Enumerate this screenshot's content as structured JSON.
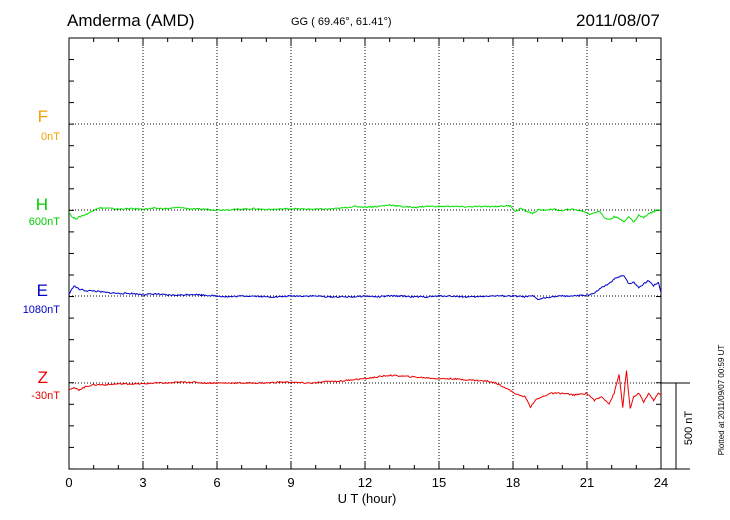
{
  "header": {
    "station": "Amderma (AMD)",
    "coords": "GG ( 69.46°,  61.41°)",
    "date": "2011/08/07"
  },
  "side_note": "Plotted at 2011/09/07 00:59 UT",
  "scale_label": "500 nT",
  "chart_data": {
    "type": "line",
    "xlabel": "U T (hour)",
    "xlim": [
      0,
      24
    ],
    "xticks": [
      "0",
      "3",
      "6",
      "9",
      "12",
      "15",
      "18",
      "21",
      "24"
    ],
    "grid": true,
    "scale_bar_nT": 500,
    "series": [
      {
        "name": "F",
        "baseline_label": "0nT",
        "color": "#f0a000",
        "x": [],
        "y": []
      },
      {
        "name": "H",
        "baseline_label": "600nT",
        "color": "#00e000",
        "x": [
          0,
          0.15,
          0.3,
          0.5,
          0.7,
          0.9,
          1.1,
          1.3,
          1.6,
          2,
          2.5,
          3,
          3.5,
          4,
          4.5,
          5,
          5.5,
          6,
          6.5,
          7,
          7.5,
          8,
          8.5,
          9,
          9.5,
          10,
          10.5,
          11,
          11.5,
          12,
          12.5,
          13,
          13.5,
          14,
          14.5,
          15,
          15.5,
          16,
          16.5,
          17,
          17.5,
          17.9,
          18.1,
          18.3,
          18.5,
          18.8,
          19,
          19.3,
          19.6,
          20,
          20.3,
          20.6,
          20.9,
          21.1,
          21.3,
          21.5,
          21.7,
          21.9,
          22.1,
          22.3,
          22.5,
          22.7,
          22.9,
          23.1,
          23.3,
          23.5,
          23.7,
          23.9,
          24
        ],
        "y": [
          -10,
          -45,
          -50,
          -35,
          -25,
          -10,
          8,
          12,
          10,
          5,
          8,
          5,
          10,
          8,
          15,
          5,
          5,
          0,
          2,
          5,
          8,
          3,
          5,
          8,
          5,
          5,
          5,
          10,
          20,
          18,
          20,
          30,
          20,
          15,
          22,
          20,
          22,
          18,
          20,
          20,
          22,
          25,
          -10,
          10,
          -5,
          -20,
          0,
          0,
          5,
          -5,
          5,
          0,
          -10,
          -25,
          -15,
          -5,
          -45,
          -55,
          -40,
          -50,
          -65,
          -40,
          -70,
          -30,
          -45,
          -20,
          -10,
          5,
          0
        ]
      },
      {
        "name": "E",
        "baseline_label": "1080nT",
        "color": "#0000cc",
        "x": [
          0,
          0.2,
          0.4,
          0.7,
          1,
          1.5,
          2,
          2.5,
          3,
          3.5,
          4,
          4.5,
          5,
          5.5,
          6,
          6.5,
          7,
          7.5,
          8,
          8.5,
          9,
          9.5,
          10,
          10.5,
          11,
          11.5,
          12,
          12.5,
          13,
          13.5,
          14,
          14.5,
          15,
          15.5,
          16,
          16.5,
          17,
          17.5,
          18,
          18.5,
          18.8,
          19,
          19.5,
          20,
          20.5,
          21,
          21.3,
          21.6,
          21.9,
          22.1,
          22.3,
          22.5,
          22.7,
          22.9,
          23.1,
          23.3,
          23.5,
          23.7,
          23.9,
          24
        ],
        "y": [
          10,
          60,
          40,
          30,
          30,
          20,
          15,
          15,
          8,
          12,
          5,
          5,
          10,
          5,
          0,
          -5,
          0,
          0,
          -5,
          -5,
          0,
          0,
          0,
          -5,
          -5,
          -5,
          0,
          -5,
          0,
          0,
          -5,
          -5,
          0,
          0,
          -5,
          -5,
          0,
          0,
          0,
          -5,
          0,
          -20,
          -5,
          0,
          0,
          5,
          15,
          50,
          70,
          100,
          110,
          120,
          70,
          80,
          50,
          70,
          90,
          60,
          80,
          20
        ]
      },
      {
        "name": "Z",
        "baseline_label": "-30nT",
        "color": "#ee0000",
        "x": [
          0,
          0.2,
          0.4,
          0.7,
          1,
          1.5,
          2,
          2.5,
          3,
          3.5,
          4,
          4.5,
          5,
          5.5,
          6,
          6.5,
          7,
          7.5,
          8,
          8.5,
          9,
          9.5,
          10,
          10.5,
          11,
          11.5,
          12,
          12.5,
          13,
          13.5,
          14,
          14.5,
          15,
          15.5,
          16,
          16.5,
          17,
          17.3,
          17.6,
          17.9,
          18.2,
          18.5,
          18.7,
          18.9,
          19.2,
          19.5,
          20,
          20.5,
          21,
          21.3,
          21.6,
          21.9,
          22.1,
          22.3,
          22.45,
          22.6,
          22.75,
          22.9,
          23.1,
          23.3,
          23.5,
          23.7,
          23.9,
          24
        ],
        "y": [
          -35,
          -30,
          -40,
          -20,
          -10,
          -10,
          -5,
          -5,
          -5,
          0,
          0,
          5,
          5,
          0,
          0,
          0,
          0,
          0,
          0,
          5,
          5,
          0,
          0,
          10,
          10,
          20,
          25,
          35,
          45,
          40,
          35,
          30,
          25,
          25,
          20,
          15,
          10,
          0,
          -20,
          -45,
          -70,
          -80,
          -140,
          -100,
          -80,
          -60,
          -60,
          -70,
          -60,
          -100,
          -80,
          -120,
          -60,
          50,
          -140,
          70,
          -150,
          -80,
          -60,
          -110,
          -60,
          -100,
          -60,
          -70
        ]
      }
    ]
  }
}
